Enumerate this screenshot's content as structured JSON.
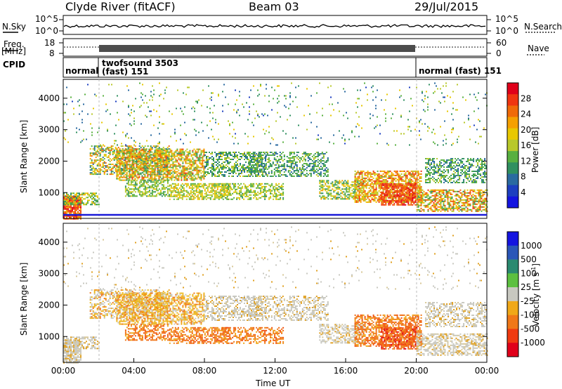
{
  "header": {
    "station": "Clyde River (fitACF)",
    "beam": "Beam 03",
    "date": "29/Jul/2015"
  },
  "panels": {
    "nsky_label": "N.Sky",
    "nsearch_label": "N.Search",
    "freq_label_top": "Freq.",
    "freq_label_bottom": "[MHz]",
    "nave_label": "Nave",
    "cpid_label": "CPID",
    "nsky_ticks": [
      "10^5",
      "10^0"
    ],
    "nsearch_ticks": [
      "10^5",
      "10^0"
    ],
    "freq_ticks": [
      "18",
      "8"
    ],
    "nave_ticks": [
      "60",
      "0"
    ]
  },
  "cpid": {
    "seg1": "normal",
    "seg2_a": "twofsound 3503",
    "seg2_b": "(fast) 151",
    "seg3": "normal (fast) 151"
  },
  "colorbars": {
    "power_label": "Power [dB]",
    "power_ticks": [
      "28",
      "24",
      "20",
      "16",
      "12",
      "8",
      "4"
    ],
    "power_colors": [
      "#e0001a",
      "#f03510",
      "#f06a08",
      "#f5a000",
      "#e8c800",
      "#b8c82a",
      "#58b040",
      "#309060",
      "#2a6aa0",
      "#1d3fc0",
      "#1414e0"
    ],
    "velocity_label_main": "Velocity [m s",
    "velocity_label_sup": "-1",
    "velocity_label_end": "]",
    "velocity_ticks": [
      "1000",
      "500",
      "100",
      "25",
      "-25",
      "-100",
      "-500",
      "-1000"
    ],
    "velocity_colors": [
      "#1414e0",
      "#2a56b8",
      "#2a8a70",
      "#5cc040",
      "#c8c8c0",
      "#f0a818",
      "#f07818",
      "#f03a10",
      "#e0001a"
    ]
  },
  "chart_data": [
    {
      "type": "heatmap",
      "title": "Power",
      "ylabel": "Slant Range [km]",
      "xlabel": "",
      "ylim": [
        180,
        4600
      ],
      "yticks": [
        "4000",
        "3000",
        "2000",
        "1000"
      ],
      "zlabel": "Power [dB]",
      "zlim": [
        0,
        32
      ]
    },
    {
      "type": "heatmap",
      "title": "Velocity",
      "ylabel": "Slant Range [km]",
      "xlabel": "Time UT",
      "ylim": [
        180,
        4600
      ],
      "yticks": [
        "4000",
        "3000",
        "2000",
        "1000"
      ],
      "xticks": [
        "00:00",
        "04:00",
        "08:00",
        "12:00",
        "16:00",
        "20:00",
        "00:00"
      ],
      "zlabel": "Velocity [m s-1]",
      "zlim": [
        -1000,
        1000
      ]
    }
  ]
}
